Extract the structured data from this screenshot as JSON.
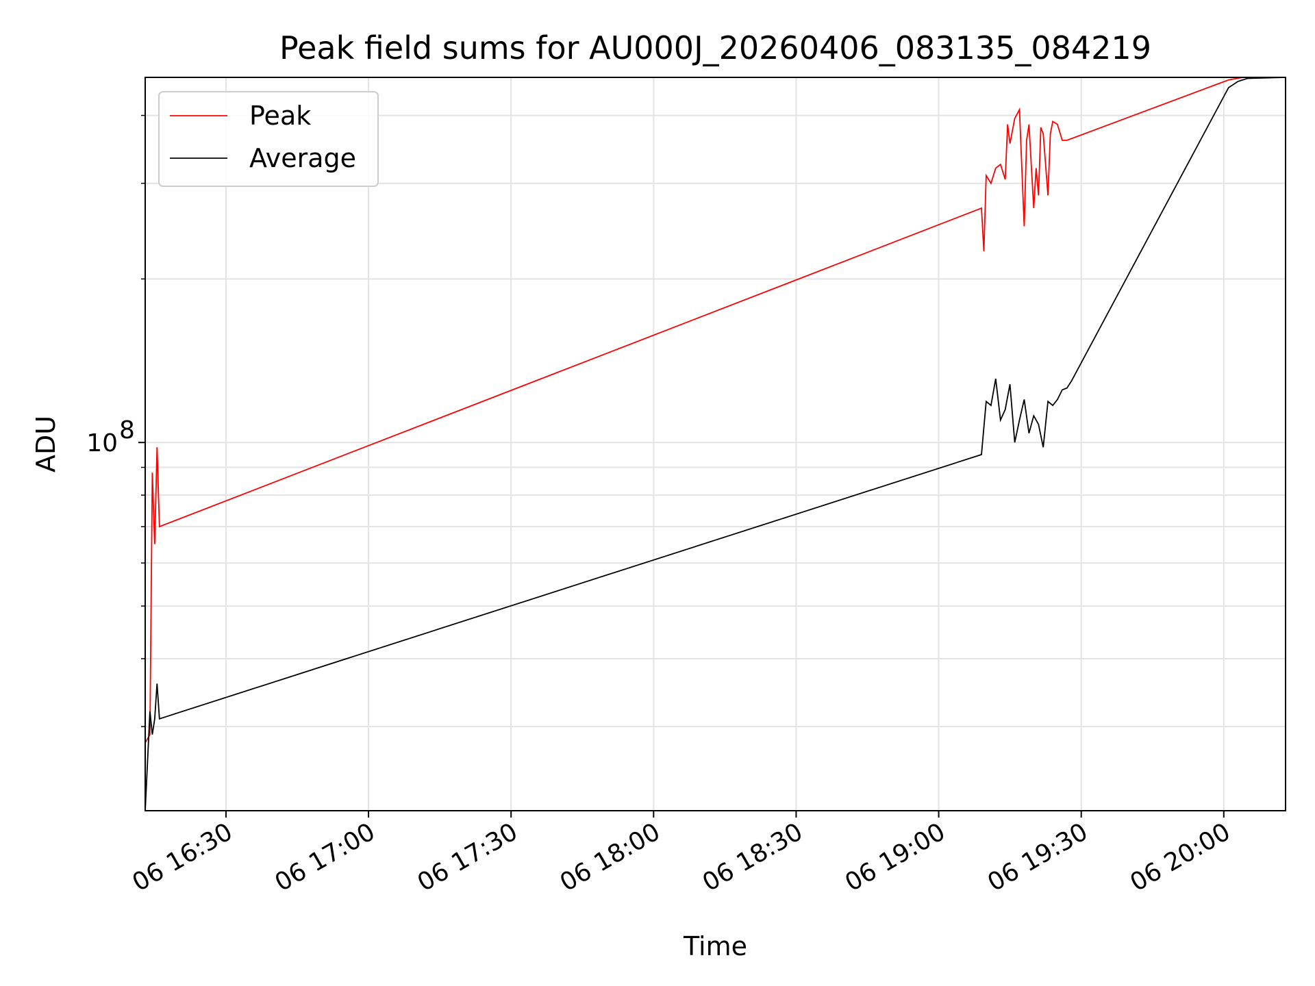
{
  "chart_data": {
    "type": "line",
    "title": "Peak field sums for AU000J_20260406_083135_084219",
    "xlabel": "Time",
    "ylabel": "ADU",
    "yscale": "log",
    "ylim": [
      21000000,
      470000000
    ],
    "xlim": [
      "2026-04-06 16:13",
      "2026-04-06 20:13"
    ],
    "x_ticks": [
      "2026-04-06 16:30",
      "2026-04-06 17:00",
      "2026-04-06 17:30",
      "2026-04-06 18:00",
      "2026-04-06 18:30",
      "2026-04-06 19:00",
      "2026-04-06 19:30",
      "2026-04-06 20:00"
    ],
    "x_tick_labels": [
      "06 16:30",
      "06 17:00",
      "06 17:30",
      "06 18:00",
      "06 18:30",
      "06 19:00",
      "06 19:30",
      "06 20:00"
    ],
    "y_tick_labels": [
      {
        "base": "10",
        "exp": "8",
        "value": 100000000
      }
    ],
    "y_minor_ticks": [
      30000000,
      40000000,
      50000000,
      60000000,
      70000000,
      80000000,
      90000000,
      200000000,
      300000000,
      400000000
    ],
    "grid": true,
    "legend": {
      "position": "top-left",
      "entries": [
        "Peak",
        "Average"
      ]
    },
    "series": [
      {
        "name": "Peak",
        "color": "#ff0000",
        "x": [
          "2026-04-06 16:13",
          "2026-04-06 16:14",
          "2026-04-06 16:14:30",
          "2026-04-06 16:15",
          "2026-04-06 16:15:30",
          "2026-04-06 16:16",
          "2026-04-06 19:09",
          "2026-04-06 19:09:30",
          "2026-04-06 19:10",
          "2026-04-06 19:11",
          "2026-04-06 19:12",
          "2026-04-06 19:13",
          "2026-04-06 19:14",
          "2026-04-06 19:14:30",
          "2026-04-06 19:15",
          "2026-04-06 19:16",
          "2026-04-06 19:17",
          "2026-04-06 19:18",
          "2026-04-06 19:18:30",
          "2026-04-06 19:19",
          "2026-04-06 19:20",
          "2026-04-06 19:20:30",
          "2026-04-06 19:21",
          "2026-04-06 19:21:30",
          "2026-04-06 19:22",
          "2026-04-06 19:23",
          "2026-04-06 19:23:30",
          "2026-04-06 19:24",
          "2026-04-06 19:25",
          "2026-04-06 19:26",
          "2026-04-06 19:27",
          "2026-04-06 20:01",
          "2026-04-06 20:04",
          "2026-04-06 20:13"
        ],
        "values": [
          28000000,
          29000000,
          88000000,
          65000000,
          98000000,
          70000000,
          270000000,
          225000000,
          310000000,
          300000000,
          320000000,
          325000000,
          305000000,
          385000000,
          355000000,
          395000000,
          410000000,
          250000000,
          360000000,
          385000000,
          270000000,
          320000000,
          285000000,
          380000000,
          370000000,
          285000000,
          370000000,
          390000000,
          385000000,
          360000000,
          360000000,
          465000000,
          470000000,
          470000000
        ]
      },
      {
        "name": "Average",
        "color": "#000000",
        "x": [
          "2026-04-06 16:13",
          "2026-04-06 16:14",
          "2026-04-06 16:14:30",
          "2026-04-06 16:15",
          "2026-04-06 16:15:30",
          "2026-04-06 16:16",
          "2026-04-06 19:09",
          "2026-04-06 19:10",
          "2026-04-06 19:11",
          "2026-04-06 19:12",
          "2026-04-06 19:13",
          "2026-04-06 19:14",
          "2026-04-06 19:15",
          "2026-04-06 19:16",
          "2026-04-06 19:17",
          "2026-04-06 19:18",
          "2026-04-06 19:19",
          "2026-04-06 19:20",
          "2026-04-06 19:21",
          "2026-04-06 19:22",
          "2026-04-06 19:23",
          "2026-04-06 19:24",
          "2026-04-06 19:25",
          "2026-04-06 19:26",
          "2026-04-06 19:27",
          "2026-04-06 19:28",
          "2026-04-06 20:01",
          "2026-04-06 20:03",
          "2026-04-06 20:05",
          "2026-04-06 20:13"
        ],
        "values": [
          21000000,
          32000000,
          29000000,
          31000000,
          36000000,
          31000000,
          95000000,
          119000000,
          117000000,
          131000000,
          110000000,
          115000000,
          128000000,
          100000000,
          110000000,
          120000000,
          104000000,
          112000000,
          108000000,
          98000000,
          119000000,
          117000000,
          120000000,
          125000000,
          126000000,
          130000000,
          450000000,
          462000000,
          468000000,
          470000000
        ]
      }
    ]
  }
}
